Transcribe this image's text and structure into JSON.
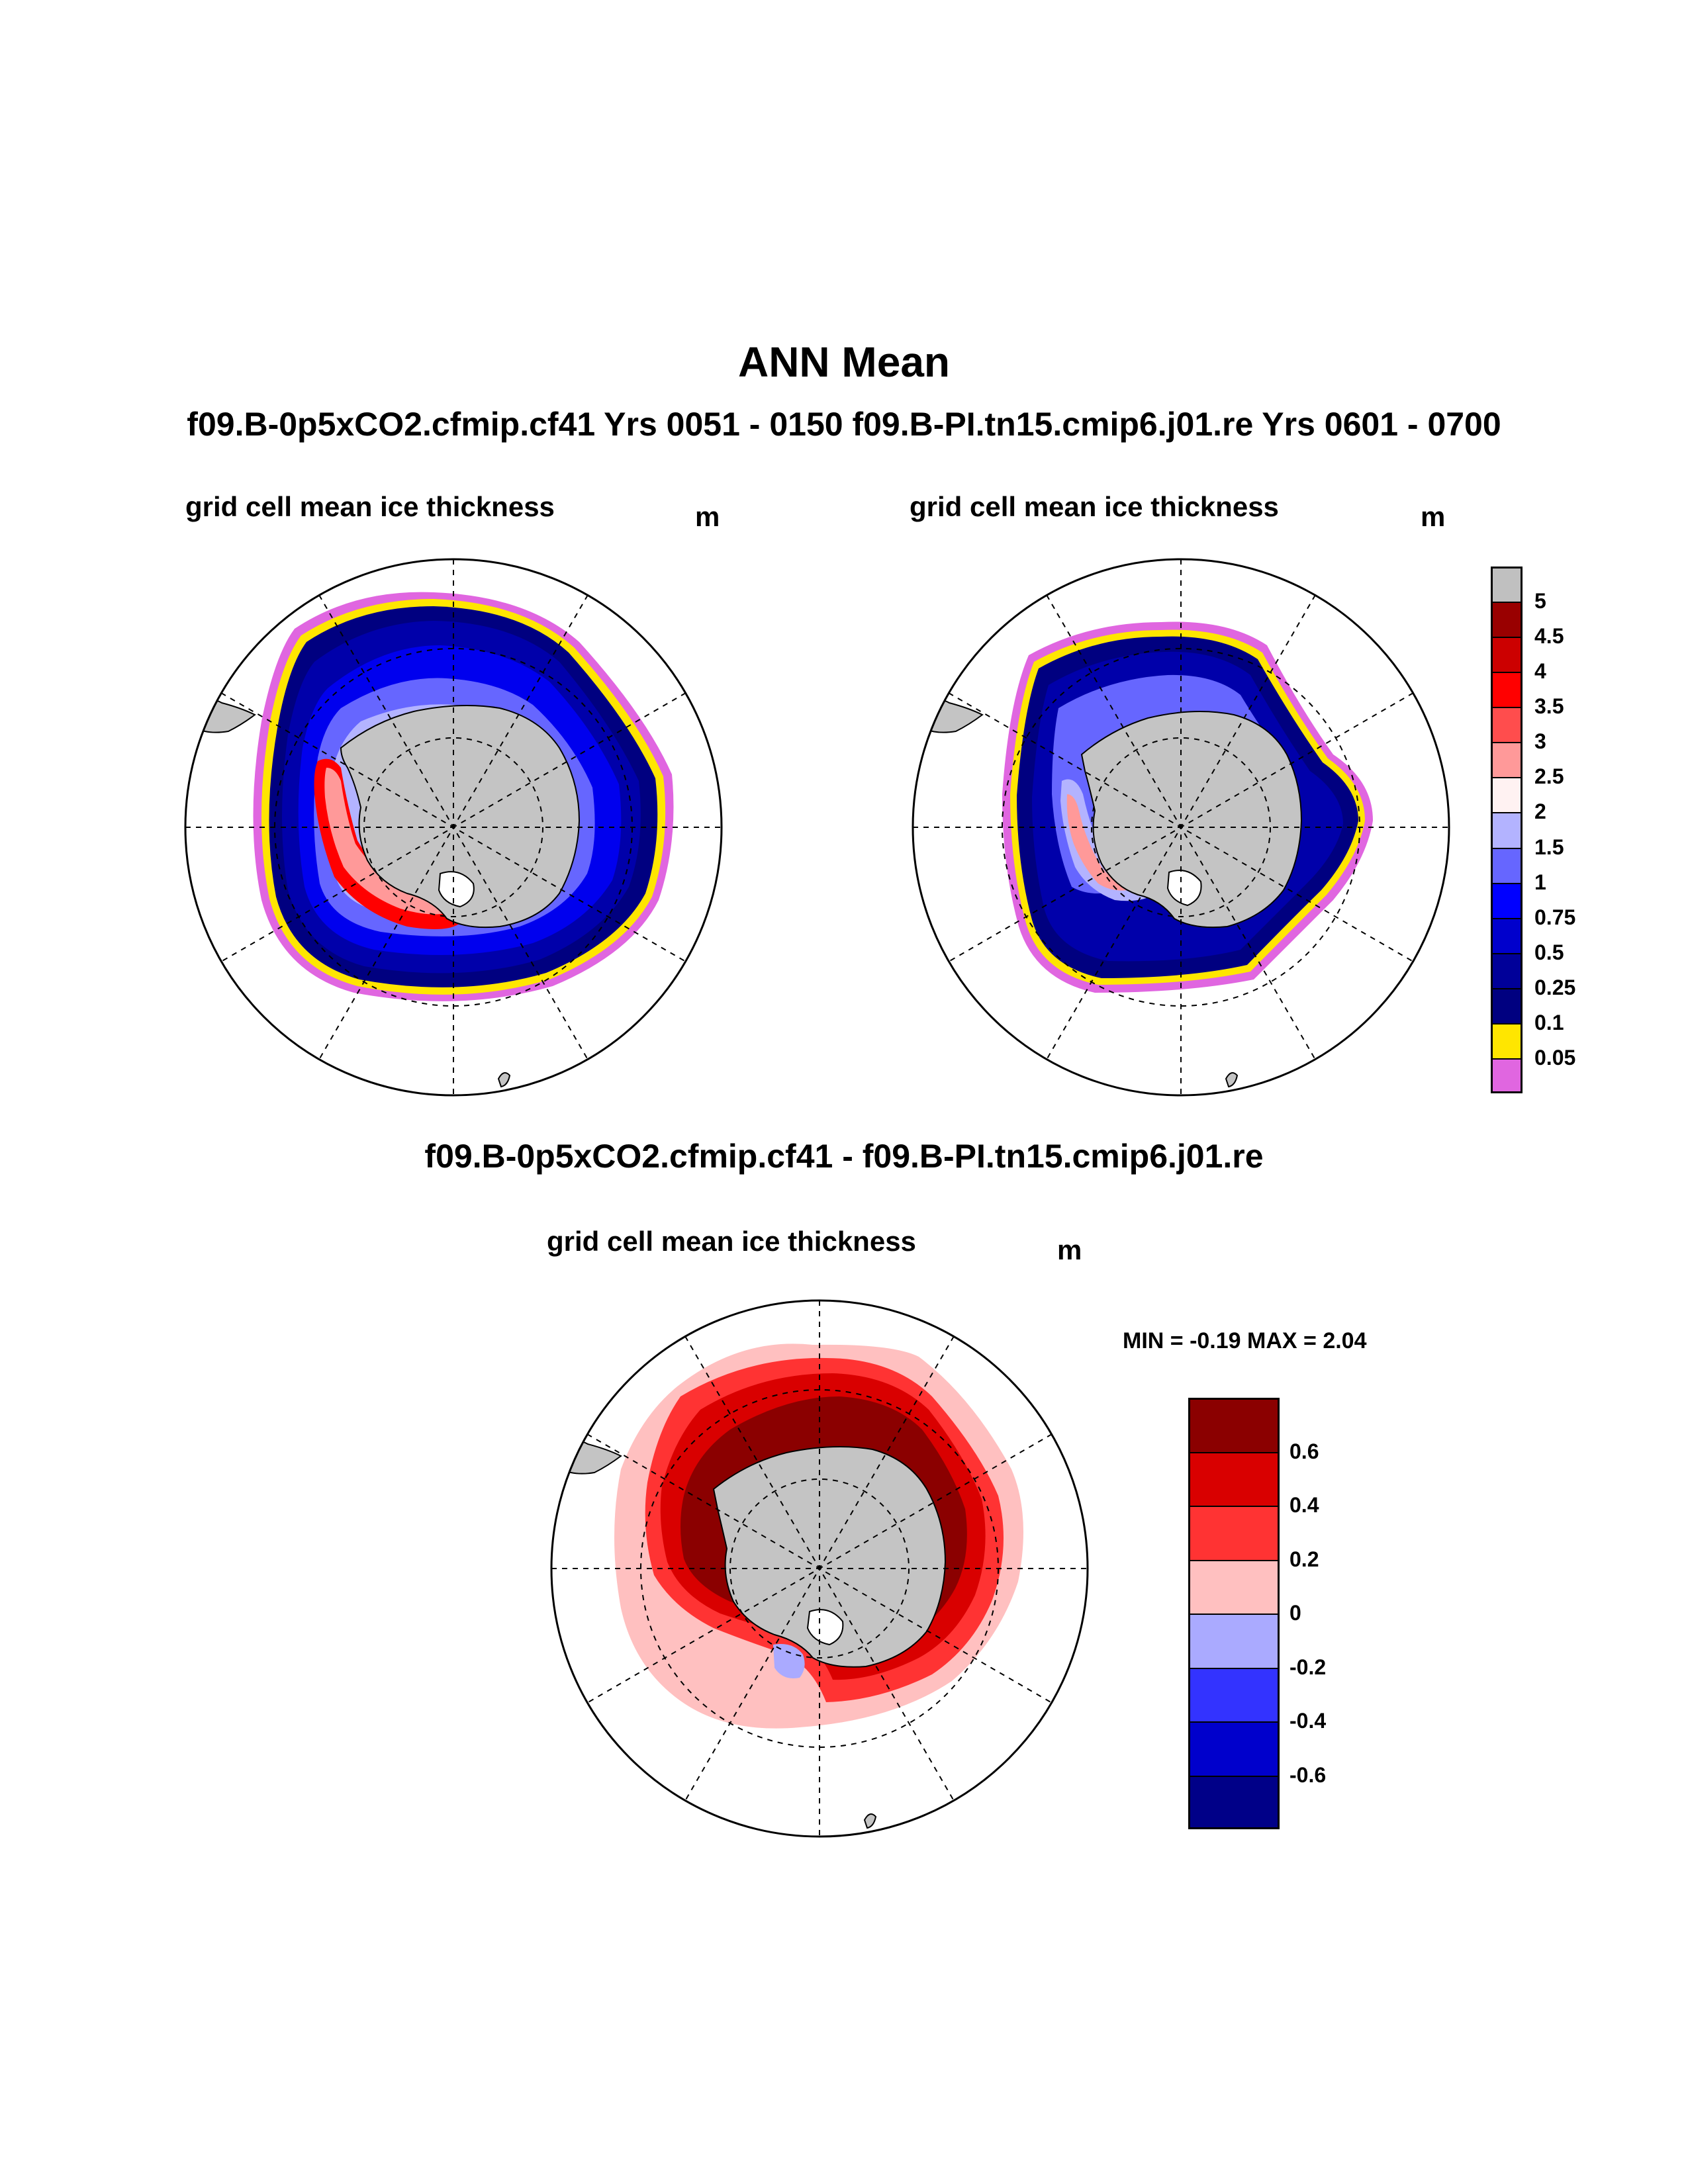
{
  "figure": {
    "title": "ANN Mean",
    "subtitle": "f09.B-0p5xCO2.cfmip.cf41  Yrs 0051 - 0150  f09.B-PI.tn15.cmip6.j01.re  Yrs 0601 - 0700"
  },
  "panels": [
    {
      "title": "grid cell mean ice thickness",
      "unit": "m"
    },
    {
      "title": "grid cell mean ice thickness",
      "unit": "m"
    }
  ],
  "difference": {
    "title": "f09.B-0p5xCO2.cfmip.cf41 - f09.B-PI.tn15.cmip6.j01.re",
    "panel_title": "grid cell mean ice thickness",
    "unit": "m",
    "minmax_text": "MIN =  -0.19 MAX =   2.04"
  },
  "colorbar_main": {
    "labels": [
      "5",
      "4.5",
      "4",
      "3.5",
      "3",
      "2.5",
      "2",
      "1.5",
      "1",
      "0.75",
      "0.5",
      "0.25",
      "0.1",
      "0.05"
    ],
    "colors": [
      "#c0c0c0",
      "#990000",
      "#cc0000",
      "#ff0000",
      "#ff4d4d",
      "#ff9999",
      "#fff2f2",
      "#b3b3ff",
      "#6666ff",
      "#0000ff",
      "#0000cc",
      "#000099",
      "#000080",
      "#ffe600",
      "#e066e0"
    ]
  },
  "colorbar_diff": {
    "labels": [
      "0.6",
      "0.4",
      "0.2",
      "0",
      "-0.2",
      "-0.4",
      "-0.6"
    ],
    "colors": [
      "#8b0000",
      "#d90000",
      "#ff3333",
      "#ffc0c0",
      "#aaaaff",
      "#3333ff",
      "#0000cc",
      "#000088"
    ]
  },
  "colors": {
    "land": "#c4c4c4",
    "outline": "#000000"
  }
}
